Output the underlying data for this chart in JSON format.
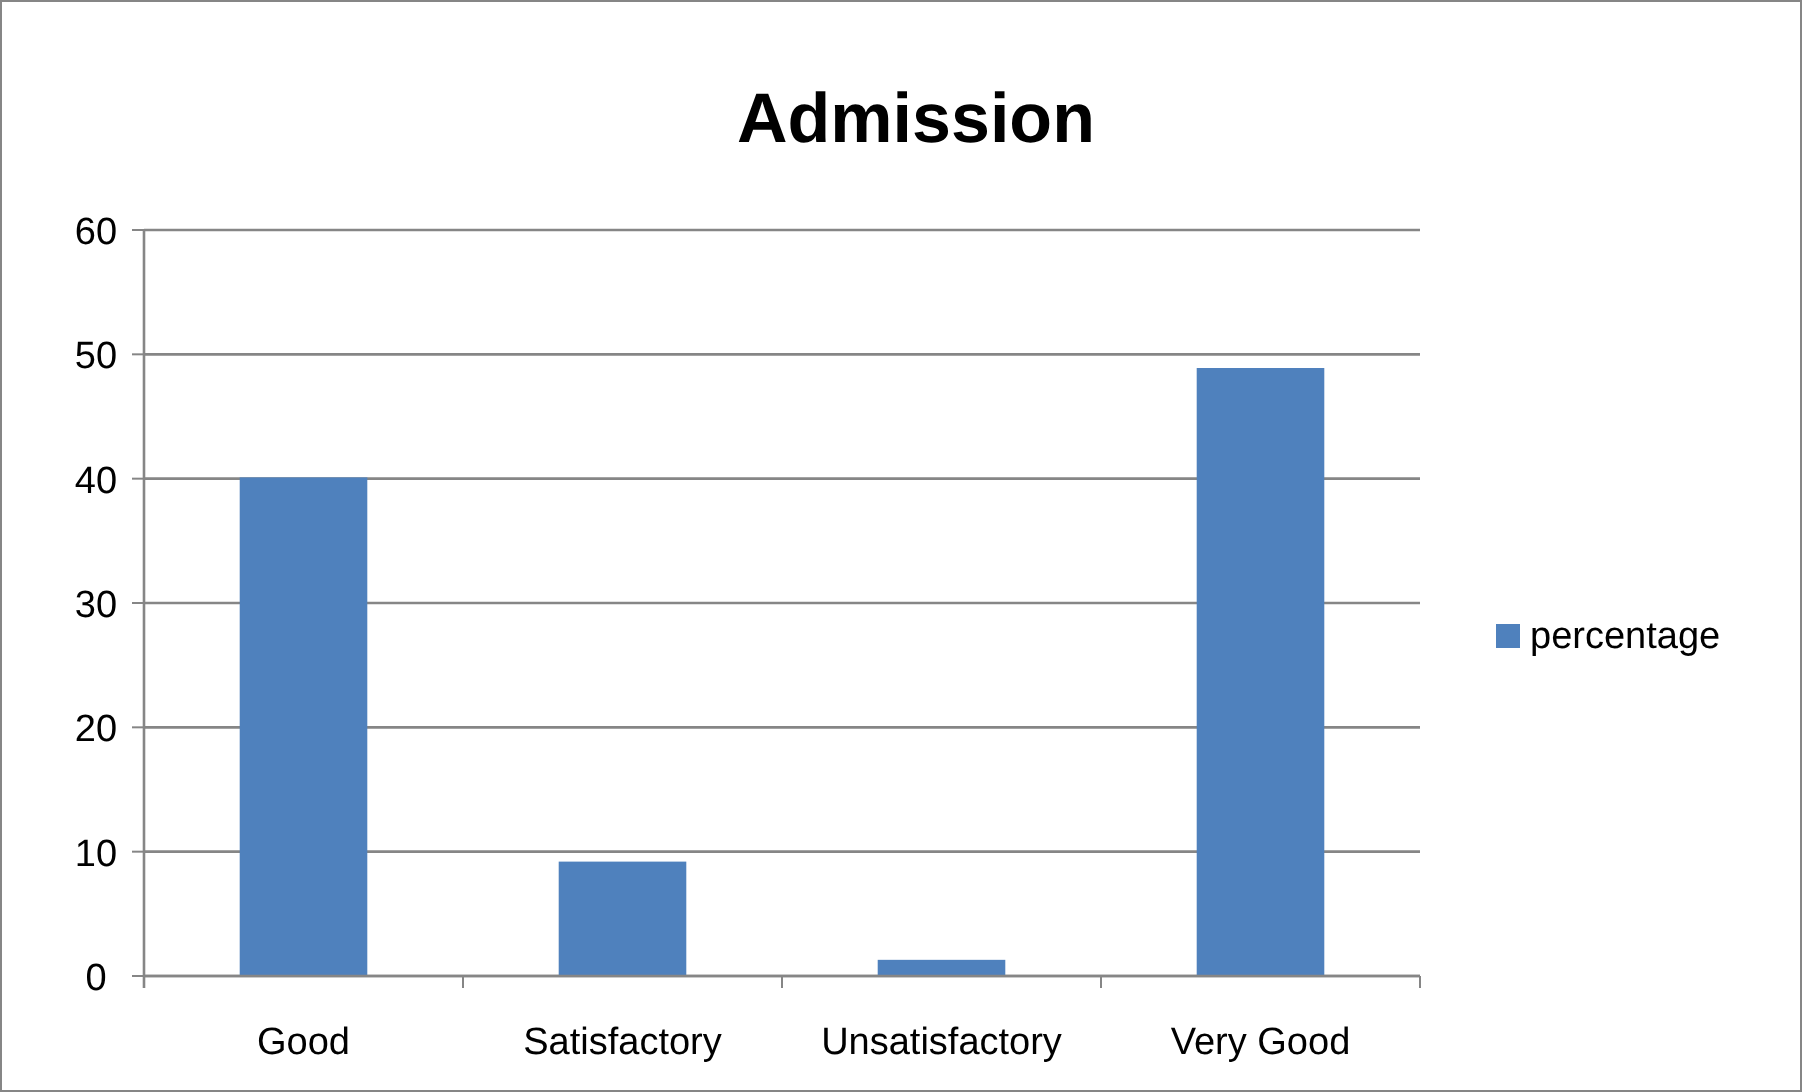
{
  "chart_data": {
    "type": "bar",
    "title": "Admission",
    "categories": [
      "Good",
      "Satisfactory",
      "Unsatisfactory",
      "Very Good"
    ],
    "series": [
      {
        "name": "percentage",
        "color": "#4f81bd",
        "values": [
          40.1,
          9.2,
          1.3,
          48.9
        ]
      }
    ],
    "ylim": [
      0,
      60
    ],
    "yticks": [
      0,
      10,
      20,
      30,
      40,
      50,
      60
    ],
    "grid": "y",
    "legend": "right"
  }
}
